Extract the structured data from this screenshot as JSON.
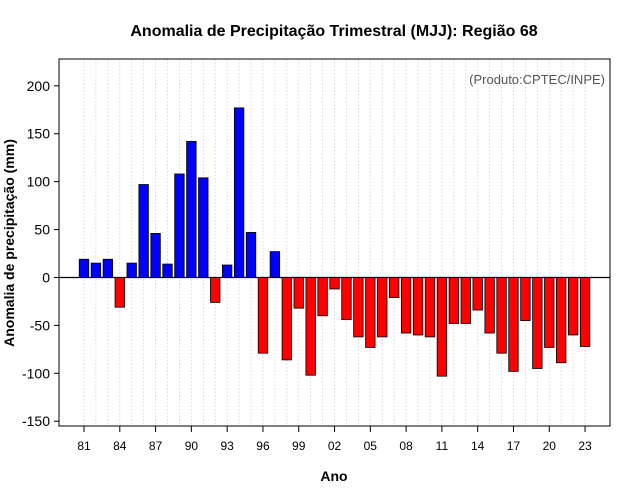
{
  "chart_data": {
    "type": "bar",
    "title": "Anomalia de Precipitação Trimestral (MJJ): Região 68",
    "xlabel": "Ano",
    "ylabel": "Anomalia de precipitação (mm)",
    "credit": "(Produto:CPTEC/INPE)",
    "ylim": [
      -155,
      228
    ],
    "yticks": [
      -150,
      -100,
      -50,
      0,
      50,
      100,
      150,
      200
    ],
    "xtick_labels": [
      "81",
      "84",
      "87",
      "90",
      "93",
      "96",
      "99",
      "02",
      "05",
      "08",
      "11",
      "14",
      "17",
      "20",
      "23"
    ],
    "xtick_years": [
      1981,
      1984,
      1987,
      1990,
      1993,
      1996,
      1999,
      2002,
      2005,
      2008,
      2011,
      2014,
      2017,
      2020,
      2023
    ],
    "grid": true,
    "positive_color": "#0000ff",
    "negative_color": "#ff0000",
    "categories": [
      1981,
      1982,
      1983,
      1984,
      1985,
      1986,
      1987,
      1988,
      1989,
      1990,
      1991,
      1992,
      1993,
      1994,
      1995,
      1996,
      1997,
      1998,
      1999,
      2000,
      2001,
      2002,
      2003,
      2004,
      2005,
      2006,
      2007,
      2008,
      2009,
      2010,
      2011,
      2012,
      2013,
      2014,
      2015,
      2016,
      2017,
      2018,
      2019,
      2020,
      2021,
      2022,
      2023
    ],
    "values": [
      19,
      15,
      19,
      -31,
      15,
      97,
      46,
      14,
      108,
      142,
      104,
      -26,
      13,
      177,
      47,
      -79,
      27,
      -86,
      -32,
      -102,
      -40,
      -12,
      -44,
      -62,
      -73,
      -62,
      -21,
      -58,
      -60,
      -62,
      -103,
      -48,
      -48,
      -34,
      -58,
      -79,
      -98,
      -45,
      -95,
      -73,
      -89,
      -60,
      -72
    ]
  }
}
